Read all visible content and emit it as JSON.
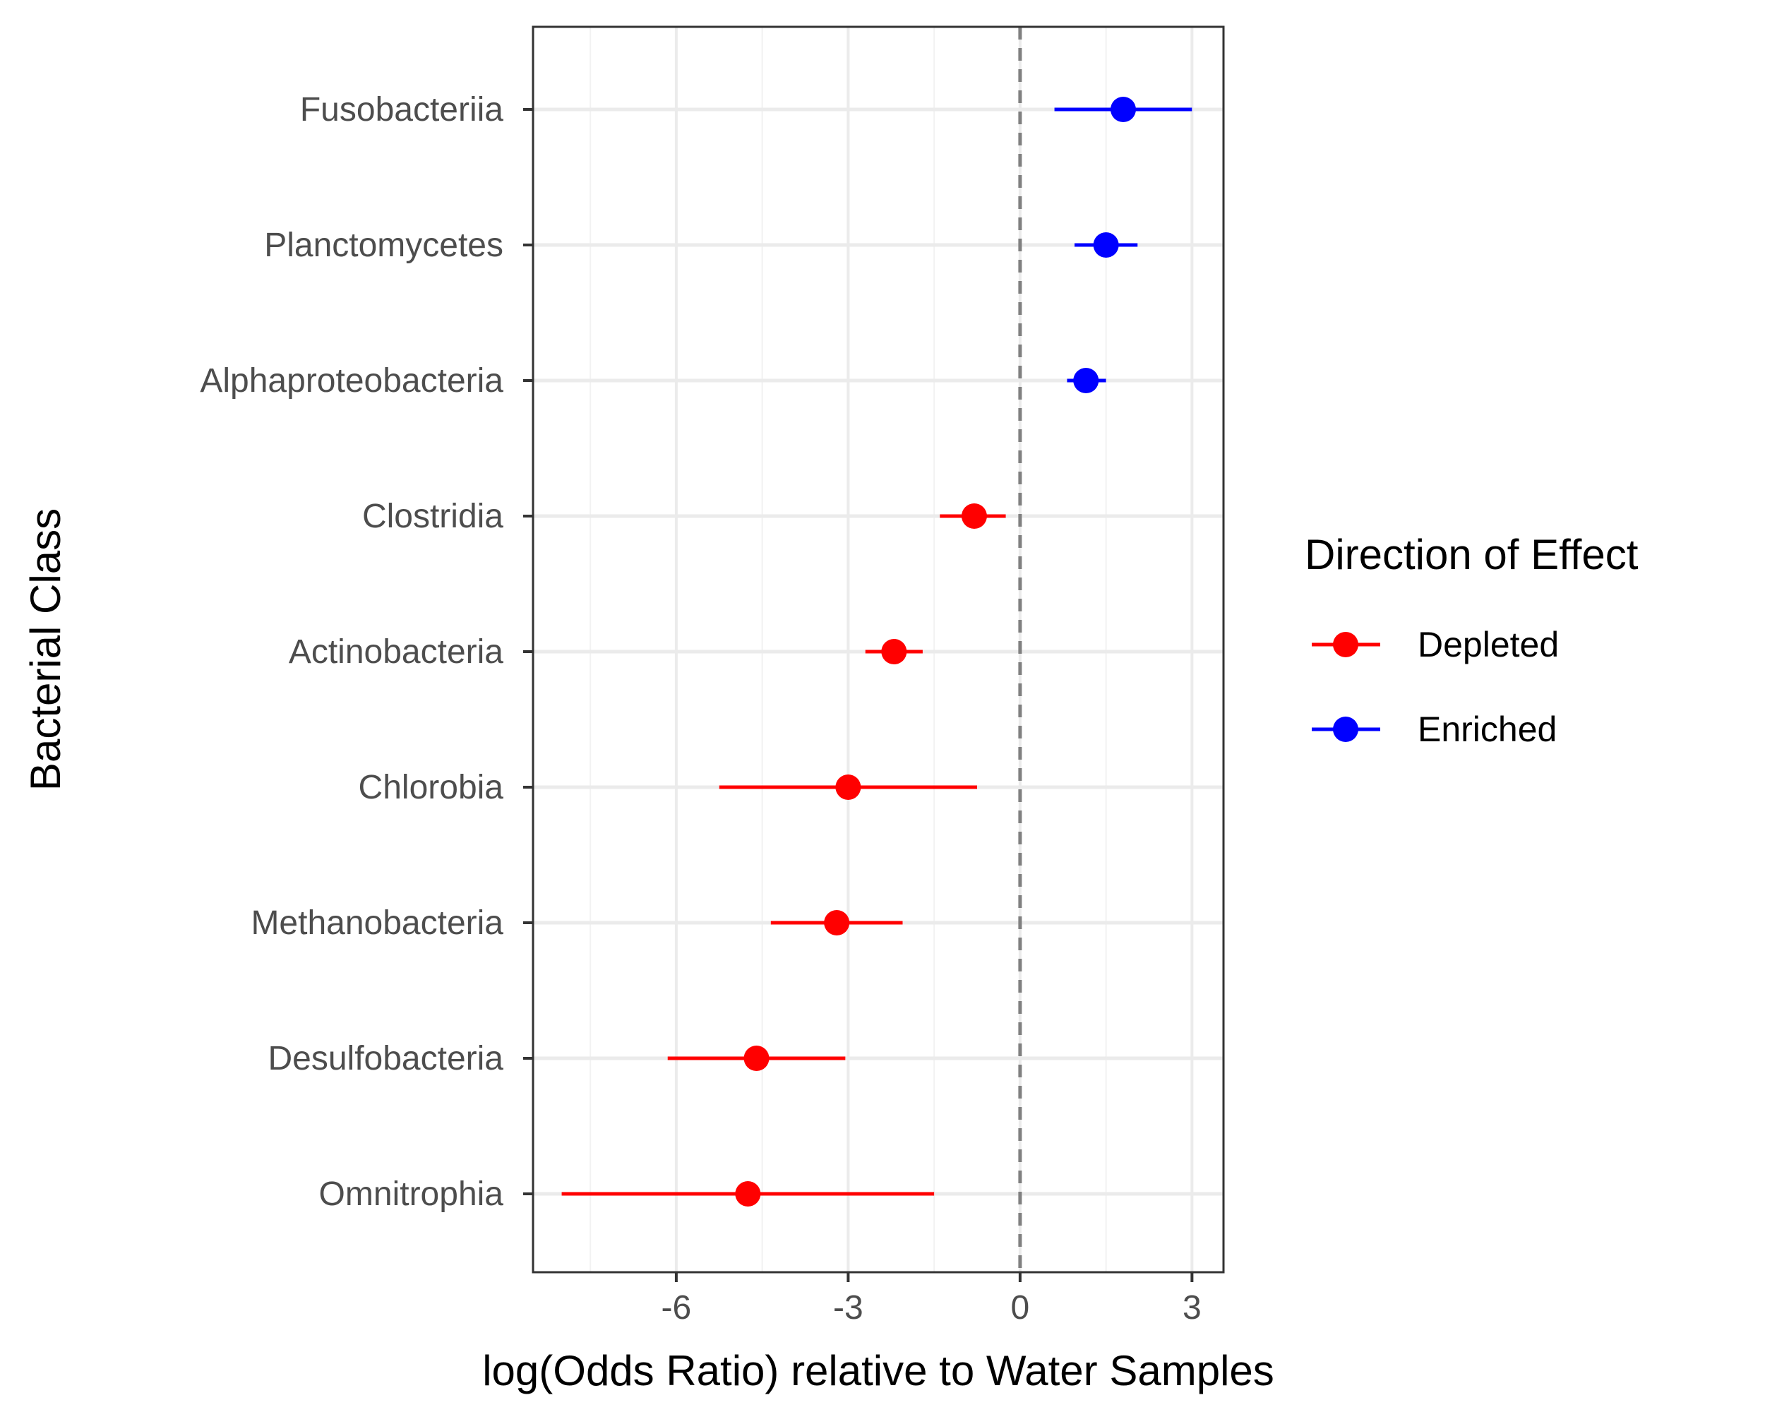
{
  "chart_data": {
    "type": "scatter",
    "subtype": "forest-plot-point-range",
    "xlabel": "log(Odds Ratio) relative to Water Samples",
    "ylabel": "Bacterial Class",
    "xlim": [
      -8.5,
      3.55
    ],
    "xticks": [
      -6,
      -3,
      0,
      3
    ],
    "x_tick_labels": [
      "-6",
      "-3",
      "0",
      "3"
    ],
    "reference_line": {
      "x": 0,
      "style": "dashed"
    },
    "grid": true,
    "legend": {
      "title": "Direction of Effect",
      "placement": "right",
      "entries": [
        {
          "label": "Depleted",
          "color": "#ff0000"
        },
        {
          "label": "Enriched",
          "color": "#0000ff"
        }
      ]
    },
    "categories": [
      "Fusobacteriia",
      "Planctomycetes",
      "Alphaproteobacteria",
      "Clostridia",
      "Actinobacteria",
      "Chlorobia",
      "Methanobacteria",
      "Desulfobacteria",
      "Omnitrophia"
    ],
    "points": [
      {
        "label": "Fusobacteriia",
        "estimate": 1.8,
        "lower": 0.6,
        "upper": 3.0,
        "direction": "Enriched"
      },
      {
        "label": "Planctomycetes",
        "estimate": 1.5,
        "lower": 0.95,
        "upper": 2.05,
        "direction": "Enriched"
      },
      {
        "label": "Alphaproteobacteria",
        "estimate": 1.15,
        "lower": 0.82,
        "upper": 1.5,
        "direction": "Enriched"
      },
      {
        "label": "Clostridia",
        "estimate": -0.8,
        "lower": -1.4,
        "upper": -0.25,
        "direction": "Depleted"
      },
      {
        "label": "Actinobacteria",
        "estimate": -2.2,
        "lower": -2.7,
        "upper": -1.7,
        "direction": "Depleted"
      },
      {
        "label": "Chlorobia",
        "estimate": -3.0,
        "lower": -5.25,
        "upper": -0.75,
        "direction": "Depleted"
      },
      {
        "label": "Methanobacteria",
        "estimate": -3.2,
        "lower": -4.35,
        "upper": -2.05,
        "direction": "Depleted"
      },
      {
        "label": "Desulfobacteria",
        "estimate": -4.6,
        "lower": -6.15,
        "upper": -3.05,
        "direction": "Depleted"
      },
      {
        "label": "Omnitrophia",
        "estimate": -4.75,
        "lower": -8.0,
        "upper": -1.5,
        "direction": "Depleted"
      }
    ]
  }
}
